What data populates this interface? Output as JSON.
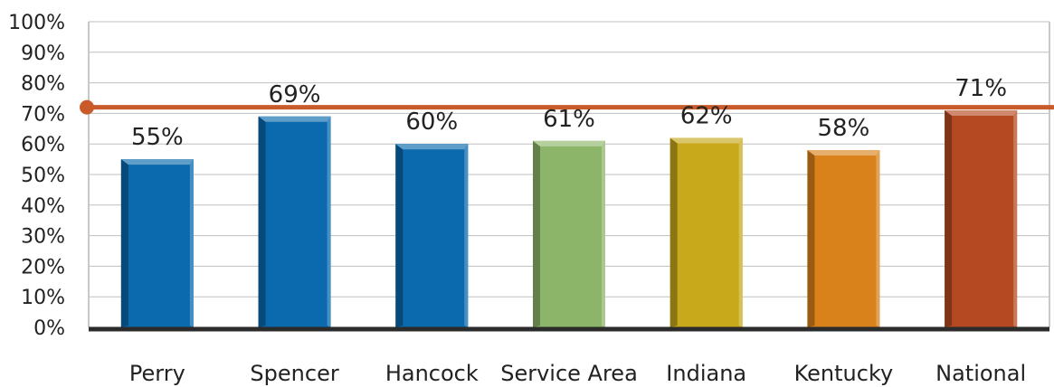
{
  "chart_data": {
    "type": "bar",
    "title": "",
    "xlabel": "",
    "ylabel": "",
    "ylim": [
      0,
      100
    ],
    "y_ticks": [
      "0%",
      "10%",
      "20%",
      "30%",
      "40%",
      "50%",
      "60%",
      "70%",
      "80%",
      "90%",
      "100%"
    ],
    "grid": true,
    "categories": [
      "Perry",
      "Spencer",
      "Hancock",
      "Service Area",
      "Indiana",
      "Kentucky",
      "National"
    ],
    "values": [
      55,
      69,
      60,
      61,
      62,
      58,
      71
    ],
    "data_labels": [
      "55%",
      "69%",
      "60%",
      "61%",
      "62%",
      "58%",
      "71%"
    ],
    "bar_colors": [
      "#0a6aad",
      "#0a6aad",
      "#0a6aad",
      "#8db56a",
      "#c8a91c",
      "#d9821c",
      "#b54a22"
    ],
    "reference_line": {
      "value": 72,
      "color": "#c95a2a"
    }
  }
}
